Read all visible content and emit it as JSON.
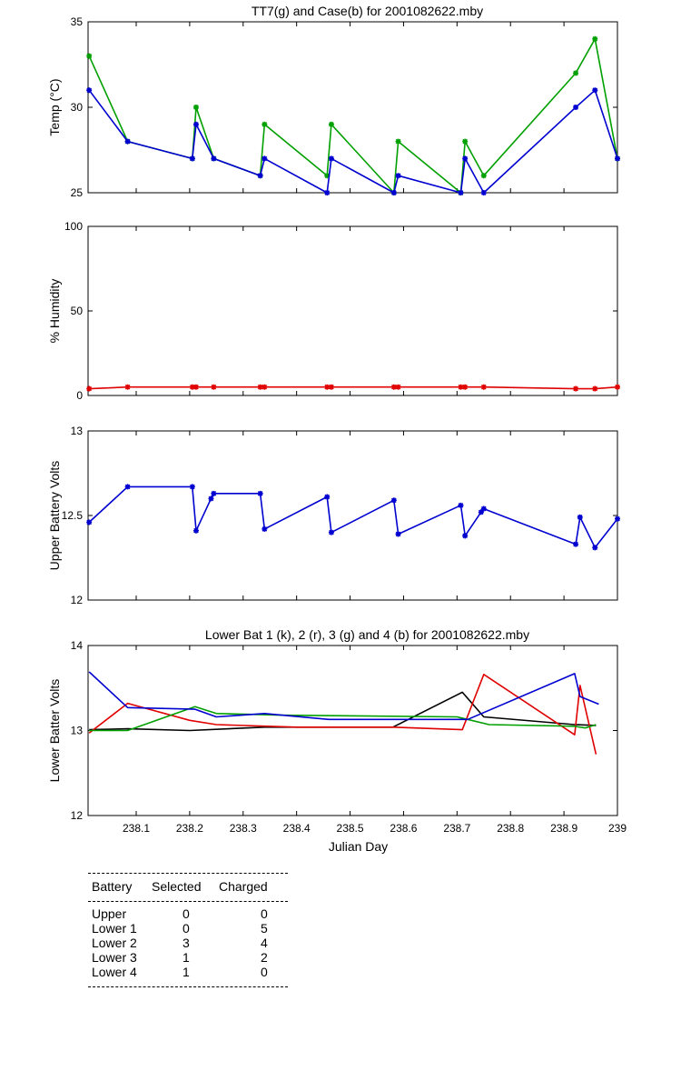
{
  "chart_data": [
    {
      "type": "line",
      "title": "TT7(g) and Case(b) for 2001082622.mby",
      "xlabel": "",
      "ylabel": "Temp  (°C)",
      "xlim": [
        238.01,
        239.0
      ],
      "ylim": [
        25,
        35
      ],
      "yticks": [
        "25",
        "30",
        "35"
      ],
      "markers": true,
      "series": [
        {
          "color": "#00a000",
          "points": [
            [
              238.012,
              33
            ],
            [
              238.084,
              28
            ],
            [
              238.205,
              27
            ],
            [
              238.212,
              30
            ],
            [
              238.245,
              27
            ],
            [
              238.332,
              26
            ],
            [
              238.34,
              29
            ],
            [
              238.457,
              26
            ],
            [
              238.465,
              29
            ],
            [
              238.582,
              25
            ],
            [
              238.59,
              28
            ],
            [
              238.707,
              25
            ],
            [
              238.715,
              28
            ],
            [
              238.75,
              26
            ],
            [
              238.922,
              32
            ],
            [
              238.958,
              34
            ],
            [
              239.0,
              27
            ]
          ]
        },
        {
          "color": "#0000d0",
          "points": [
            [
              238.012,
              31
            ],
            [
              238.084,
              28
            ],
            [
              238.205,
              27
            ],
            [
              238.212,
              29
            ],
            [
              238.245,
              27
            ],
            [
              238.332,
              26
            ],
            [
              238.34,
              27
            ],
            [
              238.457,
              25
            ],
            [
              238.465,
              27
            ],
            [
              238.582,
              25
            ],
            [
              238.59,
              26
            ],
            [
              238.707,
              25
            ],
            [
              238.715,
              27
            ],
            [
              238.75,
              25
            ],
            [
              238.922,
              30
            ],
            [
              238.958,
              31
            ],
            [
              239.0,
              27
            ]
          ]
        }
      ]
    },
    {
      "type": "line",
      "title": "",
      "xlabel": "",
      "ylabel": "% Humidity",
      "xlim": [
        238.01,
        239.0
      ],
      "ylim": [
        0,
        100
      ],
      "yticks": [
        "0",
        "50",
        "100"
      ],
      "markers": true,
      "series": [
        {
          "color": "#e00000",
          "points": [
            [
              238.012,
              4
            ],
            [
              238.084,
              5
            ],
            [
              238.205,
              5
            ],
            [
              238.212,
              5
            ],
            [
              238.245,
              5
            ],
            [
              238.332,
              5
            ],
            [
              238.34,
              5
            ],
            [
              238.457,
              5
            ],
            [
              238.465,
              5
            ],
            [
              238.582,
              5
            ],
            [
              238.59,
              5
            ],
            [
              238.707,
              5
            ],
            [
              238.715,
              5
            ],
            [
              238.75,
              5
            ],
            [
              238.922,
              4
            ],
            [
              238.958,
              4
            ],
            [
              239.0,
              5
            ]
          ]
        }
      ]
    },
    {
      "type": "line",
      "title": "",
      "xlabel": "",
      "ylabel": "Upper Battery Volts",
      "xlim": [
        238.01,
        239.0
      ],
      "ylim": [
        12,
        13
      ],
      "yticks": [
        "12",
        "12.5",
        "13"
      ],
      "markers": true,
      "series": [
        {
          "color": "#0000d0",
          "points": [
            [
              238.012,
              12.46
            ],
            [
              238.084,
              12.67
            ],
            [
              238.205,
              12.67
            ],
            [
              238.212,
              12.41
            ],
            [
              238.24,
              12.6
            ],
            [
              238.245,
              12.63
            ],
            [
              238.332,
              12.63
            ],
            [
              238.34,
              12.42
            ],
            [
              238.457,
              12.61
            ],
            [
              238.465,
              12.4
            ],
            [
              238.582,
              12.59
            ],
            [
              238.59,
              12.39
            ],
            [
              238.707,
              12.56
            ],
            [
              238.715,
              12.38
            ],
            [
              238.745,
              12.52
            ],
            [
              238.75,
              12.54
            ],
            [
              238.922,
              12.33
            ],
            [
              238.93,
              12.49
            ],
            [
              238.958,
              12.31
            ],
            [
              239.0,
              12.48
            ]
          ]
        }
      ]
    },
    {
      "type": "line",
      "title": "Lower Bat 1 (k), 2 (r), 3 (g) and 4 (b) for 2001082622.mby",
      "xlabel": "Julian Day",
      "ylabel": "Lower Batter Volts",
      "xlim": [
        238.01,
        239.0
      ],
      "ylim": [
        12,
        14
      ],
      "yticks": [
        "12",
        "13",
        "14"
      ],
      "xticks": [
        "238.1",
        "238.2",
        "238.3",
        "238.4",
        "238.5",
        "238.6",
        "238.7",
        "238.8",
        "238.9",
        "239"
      ],
      "xtick_values": [
        238.1,
        238.2,
        238.3,
        238.4,
        238.5,
        238.6,
        238.7,
        238.8,
        238.9,
        239.0
      ],
      "markers": false,
      "series": [
        {
          "color": "#000000",
          "points": [
            [
              238.012,
              13.01
            ],
            [
              238.084,
              13.02
            ],
            [
              238.2,
              13.0
            ],
            [
              238.34,
              13.04
            ],
            [
              238.58,
              13.04
            ],
            [
              238.71,
              13.45
            ],
            [
              238.75,
              13.16
            ],
            [
              238.92,
              13.07
            ],
            [
              238.96,
              13.06
            ]
          ]
        },
        {
          "color": "#e00000",
          "points": [
            [
              238.012,
              12.97
            ],
            [
              238.084,
              13.32
            ],
            [
              238.2,
              13.12
            ],
            [
              238.25,
              13.07
            ],
            [
              238.4,
              13.04
            ],
            [
              238.58,
              13.04
            ],
            [
              238.71,
              13.01
            ],
            [
              238.75,
              13.66
            ],
            [
              238.92,
              12.95
            ],
            [
              238.93,
              13.53
            ],
            [
              238.96,
              12.72
            ]
          ]
        },
        {
          "color": "#00a000",
          "points": [
            [
              238.012,
              13.0
            ],
            [
              238.084,
              13.0
            ],
            [
              238.21,
              13.28
            ],
            [
              238.25,
              13.2
            ],
            [
              238.38,
              13.18
            ],
            [
              238.7,
              13.16
            ],
            [
              238.76,
              13.07
            ],
            [
              238.92,
              13.05
            ],
            [
              238.94,
              13.03
            ],
            [
              238.96,
              13.07
            ]
          ]
        },
        {
          "color": "#0000d0",
          "points": [
            [
              238.012,
              13.69
            ],
            [
              238.084,
              13.27
            ],
            [
              238.21,
              13.25
            ],
            [
              238.25,
              13.16
            ],
            [
              238.34,
              13.2
            ],
            [
              238.46,
              13.13
            ],
            [
              238.72,
              13.13
            ],
            [
              238.92,
              13.67
            ],
            [
              238.93,
              13.4
            ],
            [
              238.965,
              13.31
            ]
          ]
        }
      ]
    }
  ],
  "legend_table": {
    "headers": {
      "battery": "Battery",
      "selected": "Selected",
      "charged": "Charged"
    },
    "rows": [
      {
        "battery": "Upper",
        "selected": "0",
        "charged": "0"
      },
      {
        "battery": "Lower 1",
        "selected": "0",
        "charged": "5"
      },
      {
        "battery": "Lower 2",
        "selected": "3",
        "charged": "4"
      },
      {
        "battery": "Lower 3",
        "selected": "1",
        "charged": "2"
      },
      {
        "battery": "Lower 4",
        "selected": "1",
        "charged": "0"
      }
    ]
  }
}
